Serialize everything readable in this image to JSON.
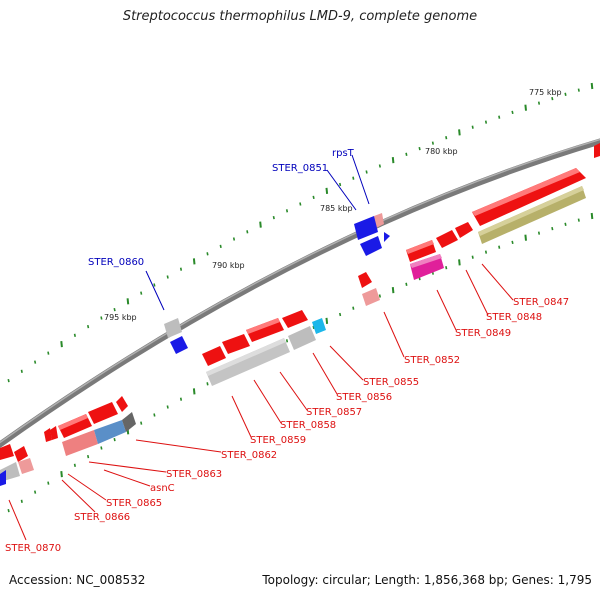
{
  "title": "Streptococcus thermophilus LMD-9, complete genome",
  "footer": {
    "accession": "Accession: NC_008532",
    "summary": "Topology: circular; Length: 1,856,368 bp; Genes: 1,795"
  },
  "colors": {
    "backbone": "#808080",
    "tick": "#2a8a2a",
    "red_gene": "#ee1111",
    "blue_gene": "#1a1ae6",
    "pink_gene": "#ee9a9a",
    "gray_gene": "#bdbdbd",
    "olive_gene": "#b7b06a",
    "magenta_gene": "#e0209a",
    "cyan_gene": "#1cb7ea",
    "steel_gene": "#5a8fc8",
    "red_label": "#dd1111",
    "blue_label": "#0000bb"
  },
  "kbp_labels": [
    "775 kbp",
    "780 kbp",
    "785 kbp",
    "790 kbp",
    "795 kbp"
  ],
  "gene_labels": [
    {
      "text": "rpsT",
      "color": "blue"
    },
    {
      "text": "STER_0851",
      "color": "blue"
    },
    {
      "text": "STER_0860",
      "color": "blue"
    },
    {
      "text": "STER_0847",
      "color": "red"
    },
    {
      "text": "STER_0848",
      "color": "red"
    },
    {
      "text": "STER_0849",
      "color": "red"
    },
    {
      "text": "STER_0852",
      "color": "red"
    },
    {
      "text": "STER_0855",
      "color": "red"
    },
    {
      "text": "STER_0856",
      "color": "red"
    },
    {
      "text": "STER_0857",
      "color": "red"
    },
    {
      "text": "STER_0858",
      "color": "red"
    },
    {
      "text": "STER_0859",
      "color": "red"
    },
    {
      "text": "STER_0862",
      "color": "red"
    },
    {
      "text": "STER_0863",
      "color": "red"
    },
    {
      "text": "asnC",
      "color": "red"
    },
    {
      "text": "STER_0865",
      "color": "red"
    },
    {
      "text": "STER_0866",
      "color": "red"
    },
    {
      "text": "STER_0870",
      "color": "red"
    }
  ]
}
